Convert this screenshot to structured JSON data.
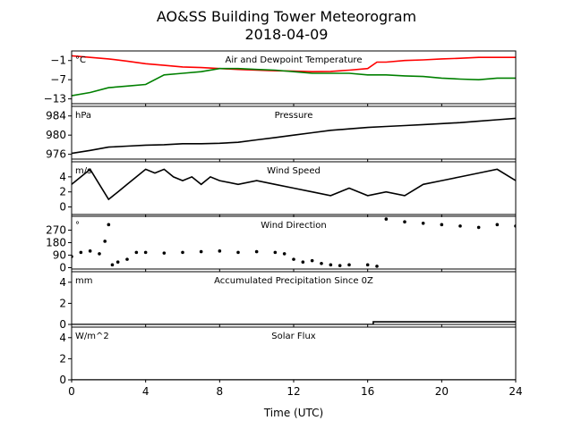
{
  "title_line1": "AO&SS Building Tower Meteorogram",
  "title_line2": "2018-04-09",
  "chart_data": {
    "type": "line",
    "xlabel": "Time (UTC)",
    "xlim": [
      0,
      24
    ],
    "xticks": [
      "0",
      "4",
      "8",
      "12",
      "16",
      "20",
      "24"
    ],
    "panels": [
      {
        "title": "Air and Dewpoint Temperature",
        "unit": "°C",
        "ylim": [
          -14.5,
          2
        ],
        "yticks": [
          -1,
          -7,
          -13
        ],
        "ytick_labels": [
          "−1",
          "−7",
          "−13"
        ],
        "series": [
          {
            "color": "#ff0000",
            "x": [
              0,
              1,
              2,
              3,
              4,
              5,
              6,
              7,
              8,
              9,
              10,
              11,
              12,
              13,
              14,
              15,
              16,
              16.5,
              17,
              18,
              19,
              20,
              21,
              22,
              23,
              24
            ],
            "y": [
              0.5,
              0,
              -0.5,
              -1.2,
              -2,
              -2.5,
              -3,
              -3.2,
              -3.5,
              -3.8,
              -4,
              -4.2,
              -4.3,
              -4.5,
              -4.4,
              -4,
              -3.5,
              -1.5,
              -1.5,
              -1,
              -0.8,
              -0.5,
              -0.3,
              0,
              0,
              0
            ]
          },
          {
            "color": "#008000",
            "x": [
              0,
              1,
              2,
              3,
              4,
              5,
              6,
              7,
              8,
              9,
              10,
              11,
              12,
              13,
              14,
              15,
              16,
              17,
              18,
              19,
              20,
              21,
              22,
              23,
              24
            ],
            "y": [
              -12,
              -11,
              -9.5,
              -9,
              -8.5,
              -5.5,
              -5,
              -4.5,
              -3.5,
              -3.5,
              -3.8,
              -4,
              -4.5,
              -5,
              -5,
              -5,
              -5.5,
              -5.5,
              -5.8,
              -6,
              -6.5,
              -6.8,
              -7,
              -6.5,
              -6.5
            ]
          }
        ]
      },
      {
        "title": "Pressure",
        "unit": "hPa",
        "ylim": [
          975,
          986
        ],
        "yticks": [
          984,
          980,
          976
        ],
        "ytick_labels": [
          "984",
          "980",
          "976"
        ],
        "series": [
          {
            "color": "#000000",
            "x": [
              0,
              1,
              2,
              3,
              4,
              5,
              6,
              7,
              8,
              9,
              10,
              11,
              12,
              13,
              14,
              15,
              16,
              17,
              18,
              19,
              20,
              21,
              22,
              23,
              24
            ],
            "y": [
              976.2,
              976.8,
              977.5,
              977.7,
              977.9,
              978,
              978.2,
              978.2,
              978.3,
              978.5,
              979,
              979.5,
              980,
              980.5,
              981,
              981.3,
              981.6,
              981.8,
              982,
              982.2,
              982.4,
              982.6,
              982.9,
              983.2,
              983.5
            ]
          }
        ]
      },
      {
        "title": "Wind Speed",
        "unit": "m/s",
        "ylim": [
          -1,
          6
        ],
        "yticks": [
          4,
          2,
          0
        ],
        "ytick_labels": [
          "4",
          "2",
          "0"
        ],
        "series": [
          {
            "color": "#000000",
            "x": [
              0,
              0.5,
              1,
              1.5,
              2,
              2.5,
              3,
              3.5,
              4,
              4.5,
              5,
              5.5,
              6,
              6.5,
              7,
              7.5,
              8,
              9,
              10,
              11,
              12,
              13,
              14,
              15,
              16,
              17,
              18,
              19,
              20,
              21,
              22,
              23,
              24
            ],
            "y": [
              3,
              4,
              5,
              3,
              1,
              2,
              3,
              4,
              5,
              4.5,
              5,
              4,
              3.5,
              4,
              3,
              4,
              3.5,
              3,
              3.5,
              3,
              2.5,
              2,
              1.5,
              2.5,
              1.5,
              2,
              1.5,
              3,
              3.5,
              4,
              4.5,
              5,
              3.5
            ]
          }
        ]
      },
      {
        "title": "Wind Direction",
        "unit": "°",
        "ylim": [
          -10,
          370
        ],
        "yticks": [
          270,
          180,
          90,
          0
        ],
        "ytick_labels": [
          "270",
          "180",
          "90",
          "0"
        ],
        "markers": true,
        "series": [
          {
            "color": "#000000",
            "x": [
              0,
              0.5,
              1,
              1.5,
              1.8,
              2,
              2.2,
              2.5,
              3,
              3.5,
              4,
              5,
              6,
              7,
              8,
              9,
              10,
              11,
              11.5,
              12,
              12.5,
              13,
              13.5,
              14,
              14.5,
              15,
              16,
              16.5,
              17,
              18,
              19,
              20,
              21,
              22,
              23,
              24
            ],
            "y": [
              80,
              110,
              120,
              100,
              190,
              310,
              20,
              40,
              60,
              110,
              110,
              105,
              110,
              115,
              120,
              110,
              115,
              110,
              100,
              60,
              40,
              50,
              30,
              20,
              15,
              20,
              20,
              10,
              350,
              330,
              320,
              310,
              300,
              290,
              310,
              300
            ]
          }
        ]
      },
      {
        "title": "Accumulated Precipitation Since 0Z",
        "unit": "mm",
        "ylim": [
          0,
          5
        ],
        "yticks": [
          4,
          2,
          0
        ],
        "ytick_labels": [
          "4",
          "2",
          "0"
        ],
        "series": [
          {
            "color": "#000000",
            "x": [
              0,
              16.3,
              16.3,
              24
            ],
            "y": [
              0,
              0,
              0.25,
              0.25
            ]
          }
        ]
      },
      {
        "title": "Solar Flux",
        "unit": "W/m^2",
        "ylim": [
          0,
          5
        ],
        "yticks": [
          4,
          2,
          0
        ],
        "ytick_labels": [
          "4",
          "2",
          "0"
        ],
        "series": [
          {
            "color": "#000000",
            "x": [
              0,
              24
            ],
            "y": [
              0,
              0
            ]
          }
        ]
      }
    ]
  }
}
